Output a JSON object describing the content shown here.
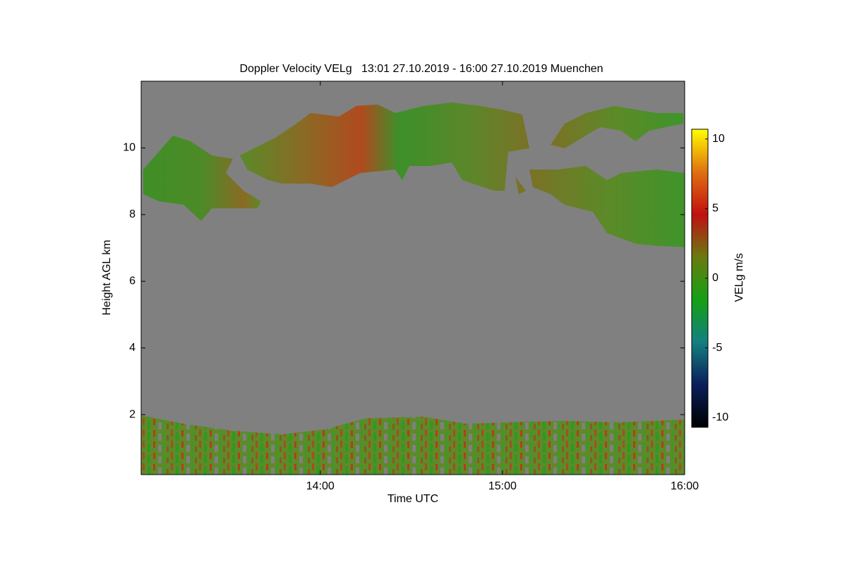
{
  "chart_data": {
    "type": "heatmap",
    "title": "Doppler Velocity VELg   13:01 27.10.2019 - 16:00 27.10.2019 Muenchen",
    "x_label": "Time UTC",
    "y_label": "Height AGL km",
    "xlim": [
      "13:01",
      "16:00"
    ],
    "xticks": [
      "14:00",
      "15:00",
      "16:00"
    ],
    "ylim": [
      0.2,
      12
    ],
    "yticks": [
      2,
      4,
      6,
      8,
      10
    ],
    "colorbar": {
      "label": "VELg m/s",
      "lim": [
        -10.7,
        10.7
      ],
      "ticks": [
        -10,
        -5,
        0,
        5,
        10
      ],
      "colormap": [
        "#000000",
        "#0a1e5a",
        "#138080",
        "#14a014",
        "#6a7a10",
        "#c01010",
        "#e07010",
        "#ffff00"
      ]
    },
    "background": "#808080"
  }
}
